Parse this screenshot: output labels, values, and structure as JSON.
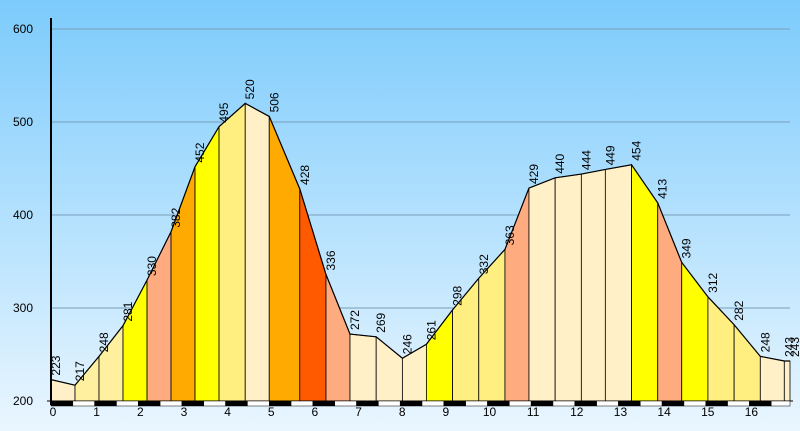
{
  "chart_data": {
    "type": "area",
    "title": "",
    "xlabel": "",
    "ylabel": "",
    "xlim": [
      0,
      16.9
    ],
    "ylim": [
      200,
      600
    ],
    "grid": true,
    "y_ticks": [
      "200",
      "300",
      "400",
      "500",
      "600"
    ],
    "x_ticks": [
      "0",
      "1",
      "2",
      "3",
      "4",
      "5",
      "6",
      "7",
      "8",
      "9",
      "10",
      "11",
      "12",
      "13",
      "14",
      "15",
      "16"
    ],
    "points": [
      {
        "x": 0.0,
        "y": 223,
        "label": "223"
      },
      {
        "x": 0.55,
        "y": 217,
        "label": "217"
      },
      {
        "x": 1.1,
        "y": 248,
        "label": "248"
      },
      {
        "x": 1.65,
        "y": 281,
        "label": "281"
      },
      {
        "x": 2.2,
        "y": 330,
        "label": "330"
      },
      {
        "x": 2.75,
        "y": 382,
        "label": "382"
      },
      {
        "x": 3.3,
        "y": 452,
        "label": "452"
      },
      {
        "x": 3.85,
        "y": 495,
        "label": "495"
      },
      {
        "x": 4.45,
        "y": 520,
        "label": "520"
      },
      {
        "x": 5.0,
        "y": 506,
        "label": "506"
      },
      {
        "x": 5.7,
        "y": 428,
        "label": "428"
      },
      {
        "x": 6.3,
        "y": 336,
        "label": "336"
      },
      {
        "x": 6.85,
        "y": 272,
        "label": "272"
      },
      {
        "x": 7.45,
        "y": 269,
        "label": "269"
      },
      {
        "x": 8.05,
        "y": 246,
        "label": "246"
      },
      {
        "x": 8.6,
        "y": 261,
        "label": "261"
      },
      {
        "x": 9.2,
        "y": 298,
        "label": "298"
      },
      {
        "x": 9.8,
        "y": 332,
        "label": "332"
      },
      {
        "x": 10.4,
        "y": 363,
        "label": "363"
      },
      {
        "x": 10.95,
        "y": 429,
        "label": "429"
      },
      {
        "x": 11.55,
        "y": 440,
        "label": "440"
      },
      {
        "x": 12.15,
        "y": 444,
        "label": "444"
      },
      {
        "x": 12.7,
        "y": 449,
        "label": "449"
      },
      {
        "x": 13.3,
        "y": 454,
        "label": "454"
      },
      {
        "x": 13.9,
        "y": 413,
        "label": "413"
      },
      {
        "x": 14.45,
        "y": 349,
        "label": "349"
      },
      {
        "x": 15.05,
        "y": 312,
        "label": "312"
      },
      {
        "x": 15.65,
        "y": 282,
        "label": "282"
      },
      {
        "x": 16.25,
        "y": 248,
        "label": "248"
      },
      {
        "x": 16.8,
        "y": 243,
        "label": "243"
      },
      {
        "x": 17.35,
        "y": 243,
        "label": "243"
      }
    ],
    "segment_colors": [
      "#FFF0C8",
      "#FFF0A0",
      "#FFF0A0",
      "#FFFF00",
      "#FFAB80",
      "#FFAA00",
      "#FFFF00",
      "#FFEE80",
      "#FFF0C8",
      "#FFAA00",
      "#FF5A00",
      "#FFAB80",
      "#FFF0C8",
      "#FFF0C8",
      "#FFF0C8",
      "#FFFF00",
      "#FFEE80",
      "#FFEE80",
      "#FFAB80",
      "#FFF0C8",
      "#FFF0C8",
      "#FFF0C8",
      "#FFF0C8",
      "#FFFF00",
      "#FFAB80",
      "#FFFF00",
      "#FFEE80",
      "#FFEE80",
      "#FFF0C8",
      "#FFF0C8"
    ],
    "colors": {
      "background_top": "#7CCBFC",
      "background_bottom": "#EAF6FF",
      "gridline": "#7A9FB8",
      "axis": "#000000"
    }
  }
}
